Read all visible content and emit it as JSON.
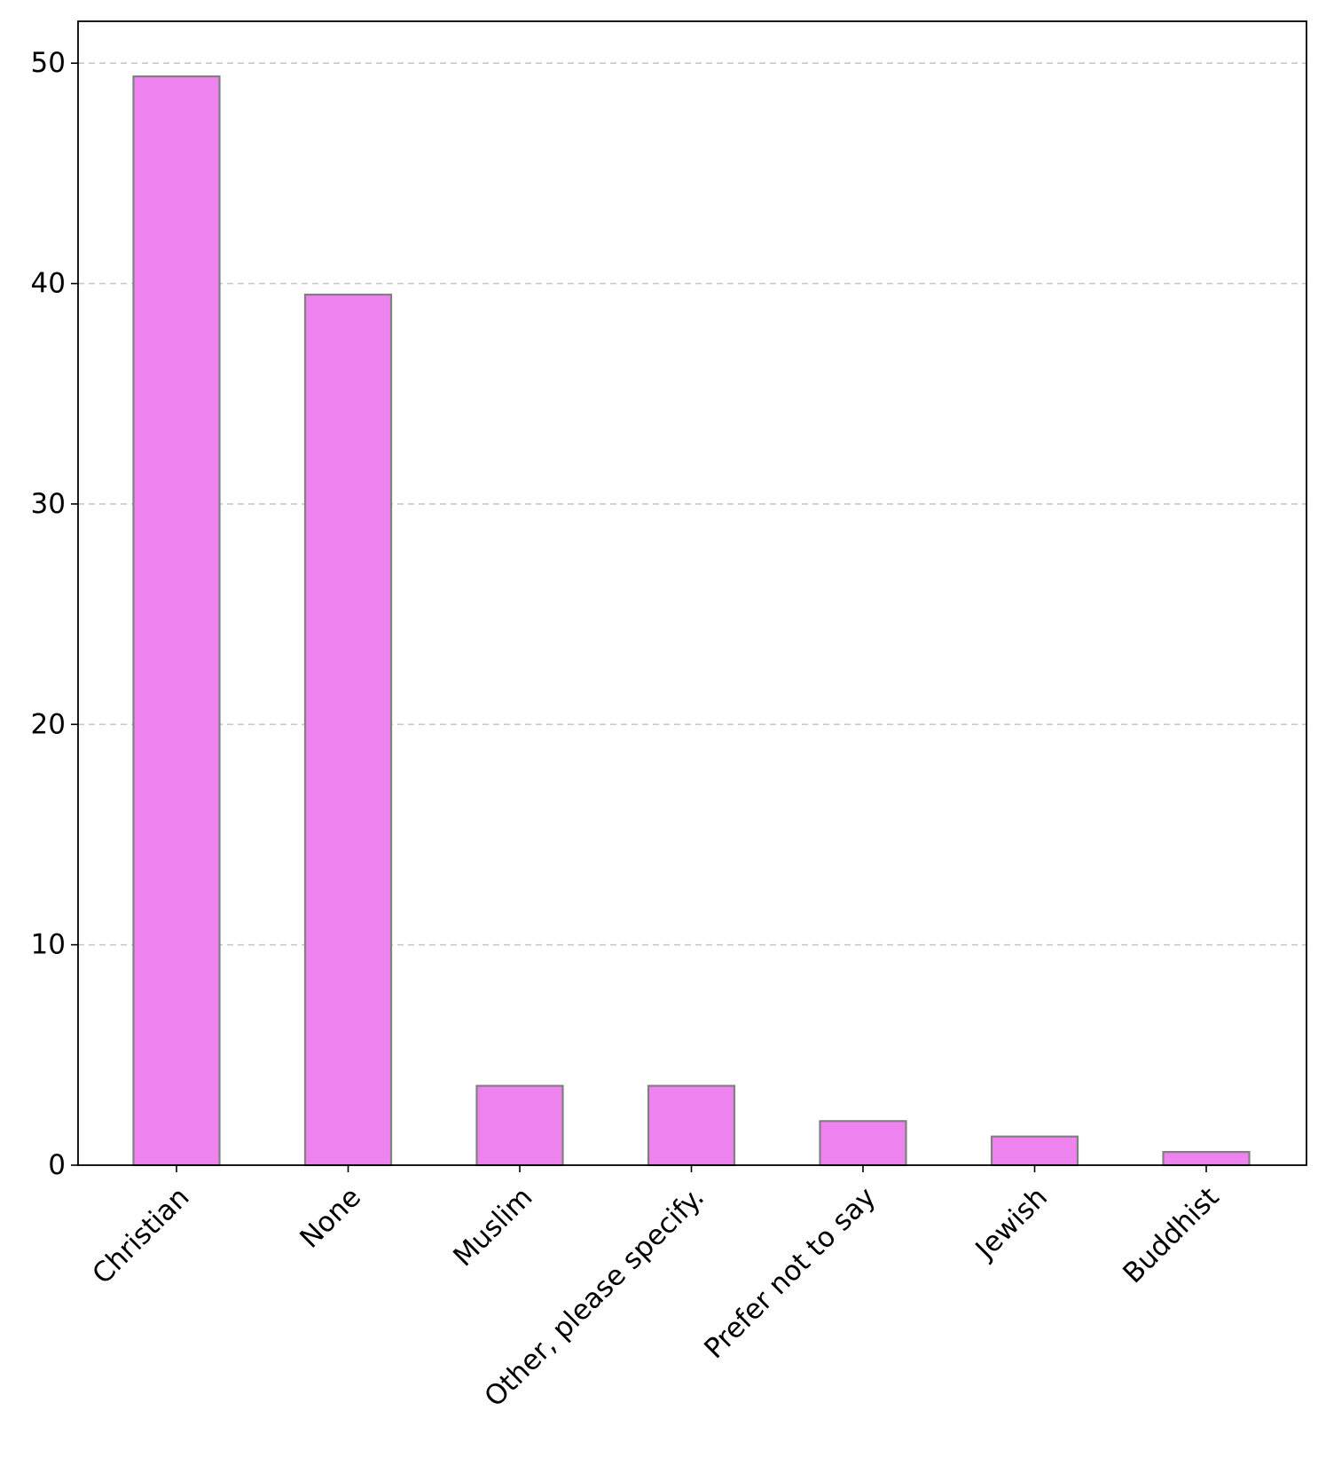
{
  "chart_data": {
    "type": "bar",
    "title": "",
    "xlabel": "",
    "ylabel": "",
    "categories": [
      "Christian",
      "None",
      "Muslim",
      "Other, please specify.",
      "Prefer not to say",
      "Jewish",
      "Buddhist"
    ],
    "values": [
      49.4,
      39.5,
      3.6,
      3.6,
      2.0,
      1.3,
      0.6
    ],
    "ylim": [
      0,
      51.9
    ],
    "yticks": [
      0,
      10,
      20,
      30,
      40,
      50
    ],
    "grid": {
      "y": true,
      "x": false,
      "style": "dashed"
    },
    "legend": "none",
    "colors": {
      "bar_fill": "#ee82ee",
      "bar_edge": "#808080",
      "grid": "#c8c8c8",
      "axis": "#000000"
    }
  }
}
